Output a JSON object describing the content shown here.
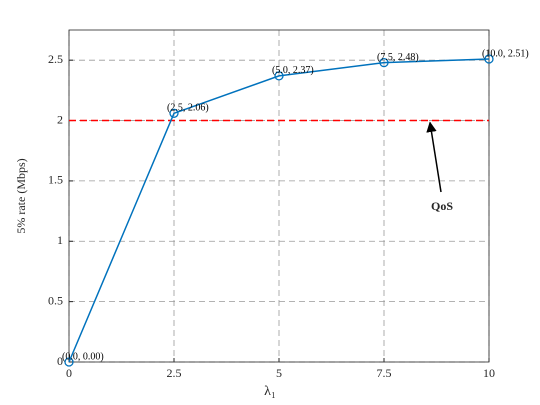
{
  "chart_data": {
    "type": "line",
    "x": [
      0,
      2.5,
      5,
      7.5,
      10
    ],
    "series": [
      {
        "color": "#0072bd",
        "values": [
          0,
          2.06,
          2.37,
          2.48,
          2.51
        ],
        "value_labels": [
          "(0.0, 0.00)",
          "(2.5, 2.06)",
          "(5.0, 2.37)",
          "(7.5, 2.48)",
          "(10.0, 2.51)"
        ]
      }
    ],
    "xlabel": "λ₁",
    "ylabel": "5% rate (Mbps)",
    "xlim": [
      0,
      10
    ],
    "xticks": [
      0,
      2.5,
      5,
      7.5,
      10
    ],
    "ylim": [
      0,
      2.75
    ],
    "yticks": [
      0,
      0.5,
      1,
      1.5,
      2,
      2.5
    ],
    "grid": true,
    "reference_line": {
      "value": 2,
      "color": "#ff0000"
    },
    "annotation": {
      "text": "QoS"
    }
  }
}
